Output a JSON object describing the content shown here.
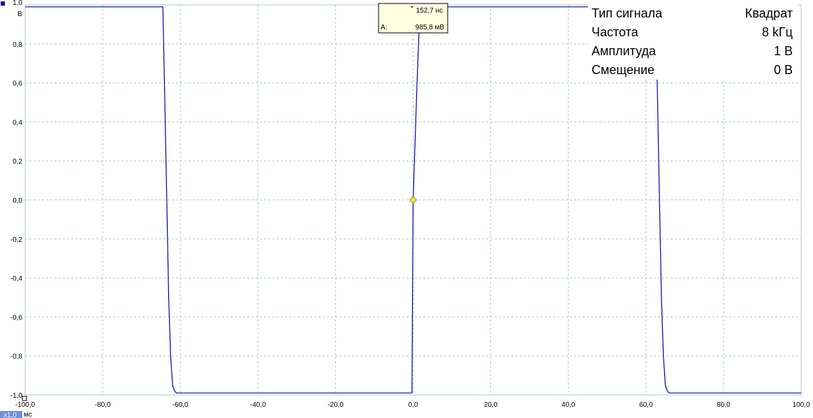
{
  "chart_data": {
    "type": "line",
    "xunit": "мс",
    "yunit": "В",
    "xlim": [
      -100,
      100
    ],
    "ylim": [
      -1,
      1
    ],
    "x_ticks": [
      -100,
      -80,
      -60,
      -40,
      -20,
      0,
      20,
      40,
      60,
      80,
      100
    ],
    "y_ticks": [
      1,
      0.8,
      0.6,
      0.4,
      0.2,
      0,
      -0.2,
      -0.4,
      -0.6,
      -0.8,
      -1
    ],
    "x_tick_labels": [
      "-100,0",
      "-80,0",
      "-60,0",
      "-40,0",
      "-20,0",
      "0,0",
      "20,0",
      "40,0",
      "60,0",
      "80,0",
      "100,0"
    ],
    "y_tick_labels": [
      "1,0",
      "0,8",
      "0,6",
      "0,4",
      "0,2",
      "0,0",
      "-0,2",
      "-0,4",
      "-0,6",
      "-0,8",
      "-1,0"
    ],
    "grid": true,
    "series": [
      {
        "color": "#0000b4",
        "x": [
          -100,
          -64.5,
          -64,
          -63.5,
          -63,
          -62.5,
          -62,
          -61.5,
          -61,
          -60,
          -10,
          -0.3,
          0,
          0.5,
          1,
          1.5,
          2,
          3,
          44,
          62.5,
          63,
          63.5,
          64,
          64.5,
          65,
          65.5,
          66,
          100
        ],
        "y": [
          0.99,
          0.99,
          0.5,
          0.0,
          -0.5,
          -0.8,
          -0.95,
          -0.98,
          -0.99,
          -0.99,
          -0.99,
          -0.99,
          0.0,
          0.3,
          0.6,
          0.85,
          0.97,
          0.99,
          0.99,
          0.99,
          0.5,
          0.0,
          -0.5,
          -0.8,
          -0.95,
          -0.98,
          -0.99,
          -0.99
        ]
      }
    ],
    "info_panel": [
      {
        "label": "Тип сигнала",
        "value": "Квадрат"
      },
      {
        "label": "Частота",
        "value": "8 kГц"
      },
      {
        "label": "Амплитуда",
        "value": "1 В"
      },
      {
        "label": "Смещение",
        "value": "0 В"
      }
    ],
    "cursor": {
      "x": 0,
      "y": 0,
      "time_label": "152,7 нс",
      "amp_prefix": "A:",
      "amp_value": "985,8 мВ",
      "marker_color": "#f2e34a"
    },
    "zoom_badge": "x1,0",
    "colors": {
      "grid": "#a8c8d8",
      "tooltip_bg": "#ffffe1",
      "badge_bg": "#6f8fdc"
    }
  }
}
